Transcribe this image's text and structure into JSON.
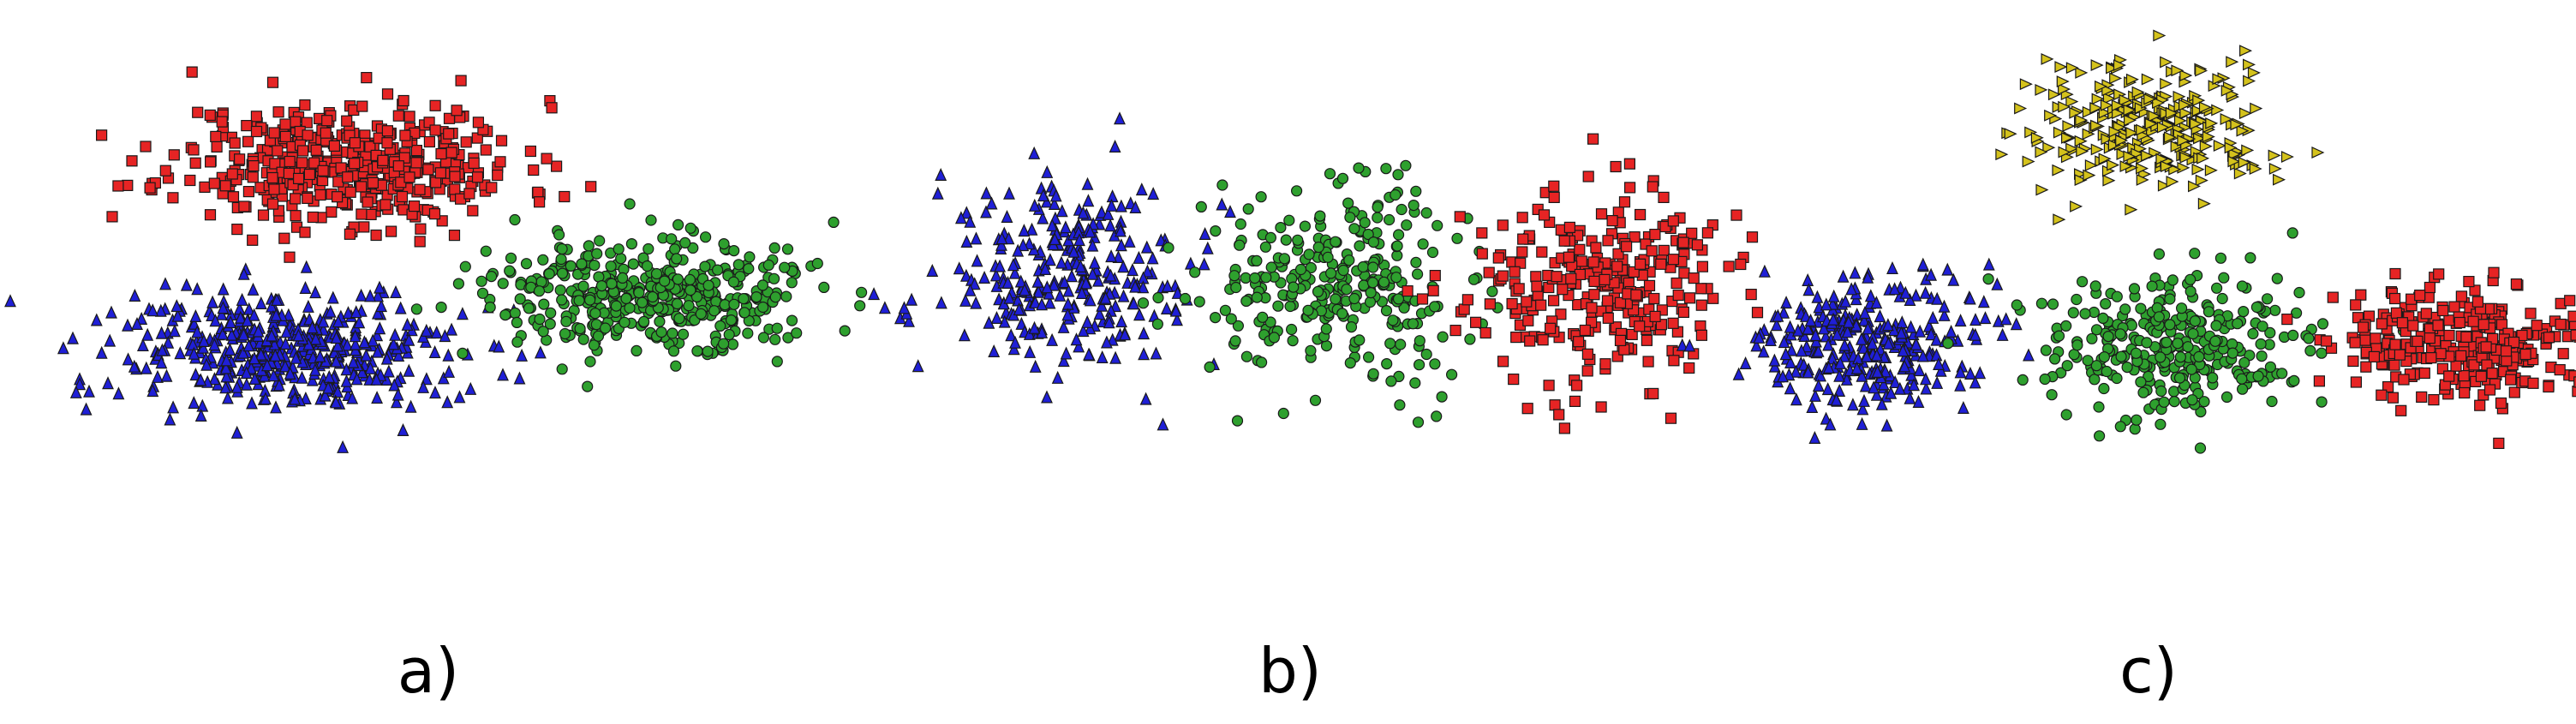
{
  "colors": {
    "blue": "#1f1fd6",
    "green": "#2ea02e",
    "red": "#e62424",
    "yellow": "#d4c21c",
    "edge": "#1a1a1a"
  },
  "chart_data": [
    {
      "type": "scatter",
      "panel_label": "a)",
      "axes": "none",
      "grid": false,
      "clusters": [
        {
          "color": "red",
          "marker": "square",
          "count": 460,
          "center": [
            -0.35,
            0.72
          ],
          "spread": [
            0.3,
            0.17
          ],
          "seed": 11
        },
        {
          "color": "blue",
          "marker": "triangle",
          "count": 460,
          "center": [
            -0.55,
            -0.3
          ],
          "spread": [
            0.28,
            0.17
          ],
          "seed": 12
        },
        {
          "color": "green",
          "marker": "circle",
          "count": 440,
          "center": [
            0.7,
            0.0
          ],
          "spread": [
            0.28,
            0.15
          ],
          "seed": 13
        }
      ]
    },
    {
      "type": "scatter",
      "panel_label": "b)",
      "axes": "none",
      "grid": false,
      "clusters": [
        {
          "color": "blue",
          "marker": "triangle",
          "count": 300,
          "center": [
            -0.85,
            0.1
          ],
          "spread": [
            0.22,
            0.26
          ],
          "seed": 21
        },
        {
          "color": "green",
          "marker": "circle",
          "count": 300,
          "center": [
            0.05,
            0.05
          ],
          "spread": [
            0.22,
            0.26
          ],
          "seed": 22
        },
        {
          "color": "red",
          "marker": "square",
          "count": 300,
          "center": [
            0.95,
            0.05
          ],
          "spread": [
            0.22,
            0.26
          ],
          "seed": 23
        }
      ]
    },
    {
      "type": "scatter",
      "panel_label": "c)",
      "axes": "none",
      "grid": false,
      "clusters": [
        {
          "color": "yellow",
          "marker": "triangle-right",
          "count": 300,
          "center": [
            -0.05,
            0.85
          ],
          "spread": [
            0.2,
            0.16
          ],
          "seed": 31
        },
        {
          "color": "blue",
          "marker": "triangle",
          "count": 320,
          "center": [
            -0.95,
            -0.25
          ],
          "spread": [
            0.2,
            0.17
          ],
          "seed": 32
        },
        {
          "color": "green",
          "marker": "circle",
          "count": 320,
          "center": [
            0.05,
            -0.25
          ],
          "spread": [
            0.2,
            0.17
          ],
          "seed": 33
        },
        {
          "color": "red",
          "marker": "square",
          "count": 320,
          "center": [
            0.95,
            -0.25
          ],
          "spread": [
            0.2,
            0.14
          ],
          "seed": 34
        }
      ]
    }
  ]
}
